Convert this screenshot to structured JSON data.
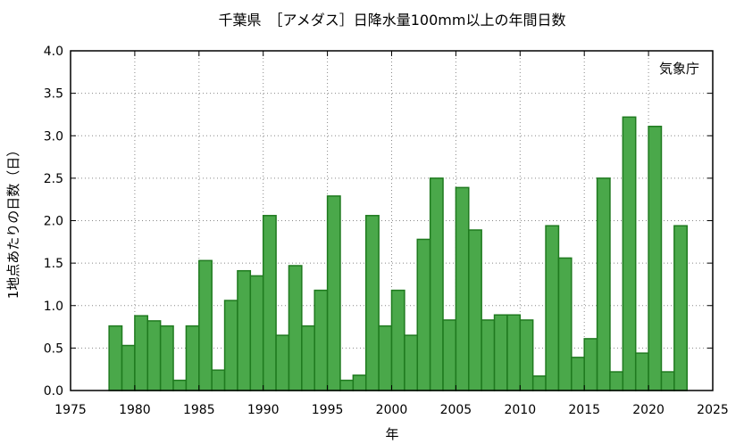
{
  "chart_data": {
    "type": "bar",
    "title": "千葉県　［アメダス］日降水量100mm以上の年間日数",
    "xlabel": "年",
    "ylabel": "1地点あたりの日数（日）",
    "annotation": "気象庁",
    "xlim": [
      1975,
      2025
    ],
    "ylim": [
      0,
      4.0
    ],
    "xticks": [
      "1975",
      "1980",
      "1985",
      "1990",
      "1995",
      "2000",
      "2005",
      "2010",
      "2015",
      "2020",
      "2025"
    ],
    "yticks": [
      "0.0",
      "0.5",
      "1.0",
      "1.5",
      "2.0",
      "2.5",
      "3.0",
      "3.5",
      "4.0"
    ],
    "grid": true,
    "bar_color": "#4aa84a",
    "bar_edge_color": "#1f7a1f",
    "x": [
      1979,
      1980,
      1981,
      1982,
      1983,
      1984,
      1985,
      1986,
      1987,
      1988,
      1989,
      1990,
      1991,
      1992,
      1993,
      1994,
      1995,
      1996,
      1997,
      1998,
      1999,
      2000,
      2001,
      2002,
      2003,
      2004,
      2005,
      2006,
      2007,
      2008,
      2009,
      2010,
      2011,
      2012,
      2013,
      2014,
      2015,
      2016,
      2017,
      2018,
      2019,
      2020,
      2021,
      2022,
      2023
    ],
    "values": [
      0.76,
      0.53,
      0.88,
      0.82,
      0.76,
      0.12,
      0.76,
      1.53,
      0.24,
      1.06,
      1.41,
      1.35,
      2.06,
      0.65,
      1.47,
      0.76,
      1.18,
      2.29,
      0.12,
      0.18,
      2.06,
      0.76,
      1.18,
      0.65,
      1.78,
      2.5,
      0.83,
      2.39,
      1.89,
      0.83,
      0.89,
      0.89,
      0.83,
      0.17,
      1.94,
      1.56,
      0.39,
      0.61,
      2.5,
      0.22,
      3.22,
      0.44,
      3.11,
      0.22,
      1.94
    ]
  }
}
